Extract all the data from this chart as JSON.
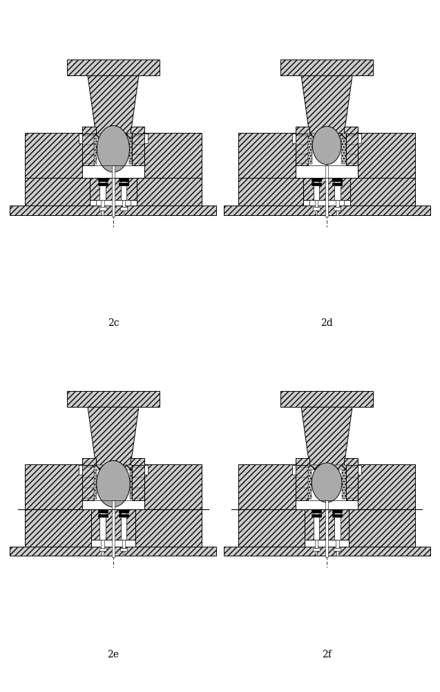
{
  "labels": [
    "2c",
    "2d",
    "2e",
    "2f"
  ],
  "background_color": "#ffffff",
  "hatch_pattern": "////",
  "line_color": "#000000",
  "fill_light": "#cccccc",
  "fill_medium": "#aaaaaa",
  "fill_white": "#ffffff",
  "fig_width": 6.37,
  "fig_height": 10.0,
  "label_fontsize": 10
}
